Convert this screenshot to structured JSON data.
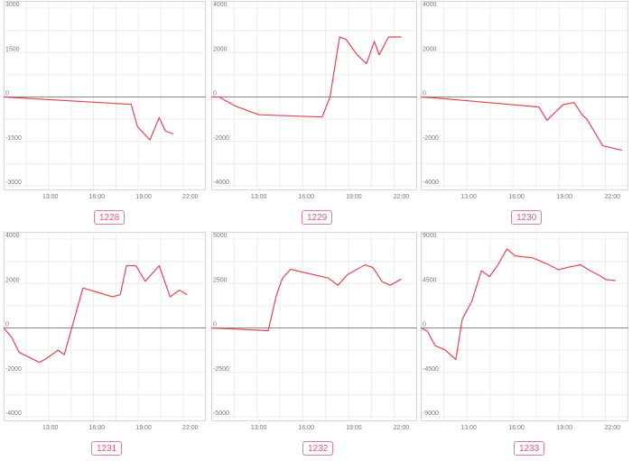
{
  "line_color": "#e8434f",
  "x_ticks": [
    "13:00",
    "16:00",
    "19:00",
    "22:00"
  ],
  "chart_data": [
    {
      "type": "line",
      "label": "1228",
      "yticks": [
        3000,
        1500,
        0,
        -1500,
        -3000
      ],
      "ylim": [
        -3000,
        3000
      ],
      "xlim": [
        10,
        23
      ],
      "x": [
        10,
        18.2,
        18.6,
        19.4,
        20.0,
        20.4,
        20.9
      ],
      "y": [
        0,
        -250,
        -1000,
        -1450,
        -700,
        -1150,
        -1250
      ]
    },
    {
      "type": "line",
      "label": "1229",
      "yticks": [
        4000,
        2000,
        0,
        -2000,
        -4000
      ],
      "ylim": [
        -4000,
        4000
      ],
      "xlim": [
        10,
        23
      ],
      "x": [
        10,
        10.5,
        11.5,
        13.0,
        17.0,
        17.5,
        18.1,
        18.5,
        19.2,
        19.8,
        20.3,
        20.6,
        21.2,
        22.0
      ],
      "y": [
        0,
        0,
        -400,
        -800,
        -900,
        0,
        2700,
        2600,
        1900,
        1500,
        2500,
        1900,
        2700,
        2700
      ]
    },
    {
      "type": "line",
      "label": "1230",
      "yticks": [
        4000,
        2000,
        0,
        -2000,
        -4000
      ],
      "ylim": [
        -4000,
        4000
      ],
      "xlim": [
        10,
        23
      ],
      "x": [
        10,
        11.0,
        17.4,
        17.9,
        18.9,
        19.6,
        20.1,
        20.4,
        21.4,
        22.6
      ],
      "y": [
        0,
        -50,
        -450,
        -1050,
        -350,
        -250,
        -800,
        -1000,
        -2200,
        -2400
      ]
    },
    {
      "type": "line",
      "label": "1231",
      "yticks": [
        4000,
        2000,
        0,
        -2000,
        -4000
      ],
      "ylim": [
        -4000,
        4000
      ],
      "xlim": [
        10,
        23
      ],
      "x": [
        10,
        10.5,
        11.0,
        12.3,
        12.7,
        13.5,
        13.9,
        14.3,
        15.1,
        17.0,
        17.5,
        17.9,
        18.5,
        19.1,
        20.0,
        20.7,
        21.3,
        21.8
      ],
      "y": [
        0,
        -400,
        -1100,
        -1550,
        -1400,
        -1000,
        -1200,
        -200,
        1800,
        1400,
        1500,
        2800,
        2800,
        2100,
        2800,
        1400,
        1700,
        1500
      ]
    },
    {
      "type": "line",
      "label": "1232",
      "yticks": [
        5000,
        2500,
        0,
        -2500,
        -5000
      ],
      "ylim": [
        -5000,
        5000
      ],
      "xlim": [
        10,
        23
      ],
      "x": [
        10,
        13.6,
        14.1,
        14.5,
        15.0,
        17.4,
        18.0,
        18.6,
        19.7,
        20.2,
        20.8,
        21.3,
        22.0
      ],
      "y": [
        0,
        -150,
        1800,
        2800,
        3300,
        2800,
        2400,
        3000,
        3550,
        3400,
        2600,
        2400,
        2750
      ]
    },
    {
      "type": "line",
      "label": "1233",
      "yticks": [
        9000,
        4500,
        0,
        -4500,
        -9000
      ],
      "ylim": [
        -9000,
        9000
      ],
      "xlim": [
        10,
        23
      ],
      "x": [
        10,
        10.4,
        10.9,
        11.5,
        12.2,
        12.6,
        13.2,
        13.8,
        14.3,
        14.8,
        15.4,
        15.9,
        17.0,
        17.9,
        18.6,
        19.4,
        20.0,
        20.6,
        21.2,
        21.6,
        22.2
      ],
      "y": [
        0,
        -300,
        -1800,
        -2200,
        -3200,
        900,
        2700,
        5800,
        5200,
        6300,
        8000,
        7300,
        7100,
        6500,
        5900,
        6200,
        6400,
        5800,
        5300,
        4900,
        4800
      ]
    }
  ]
}
